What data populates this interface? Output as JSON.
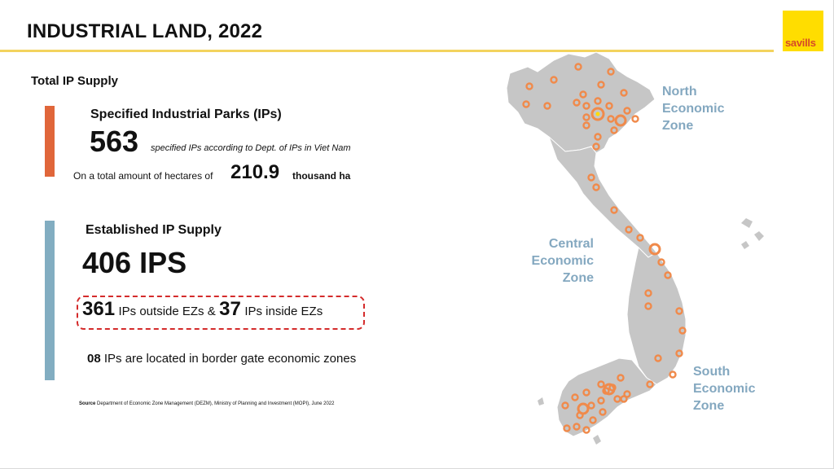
{
  "header": {
    "title": "INDUSTRIAL LAND, 2022",
    "logo_text": "savills",
    "accent_color": "#f3d35e",
    "logo_color": "#ffdd00"
  },
  "supply": {
    "section_title": "Total IP Supply",
    "specified": {
      "heading": "Specified Industrial Parks (IPs)",
      "count": "563",
      "count_note": "specified IPs according to Dept. of IPs in Viet Nam",
      "area_prefix": "On a total amount of hectares of",
      "area_value": "210.9",
      "area_unit": "thousand ha",
      "bar_color": "#e0663a"
    },
    "established": {
      "heading": "Established IP Supply",
      "count": "406 IPS",
      "outside_count": "361",
      "outside_text": "IPs outside EZs &",
      "inside_count": "37",
      "inside_text": "IPs inside EZs",
      "border_count": "08",
      "border_text": "IPs are located in border gate economic zones",
      "bar_color": "#82adc1"
    },
    "source_label": "Source",
    "source_text": "Department of Economic Zone Management (DEZM), Ministry of Planning and Investment (MOPI), June 2022"
  },
  "map": {
    "zones": {
      "north": "North Economic Zone",
      "central": "Central Economic Zone",
      "south": "South Economic Zone"
    },
    "zone_label_color": "#84a8c0",
    "marker_color": "#f08a4b"
  }
}
